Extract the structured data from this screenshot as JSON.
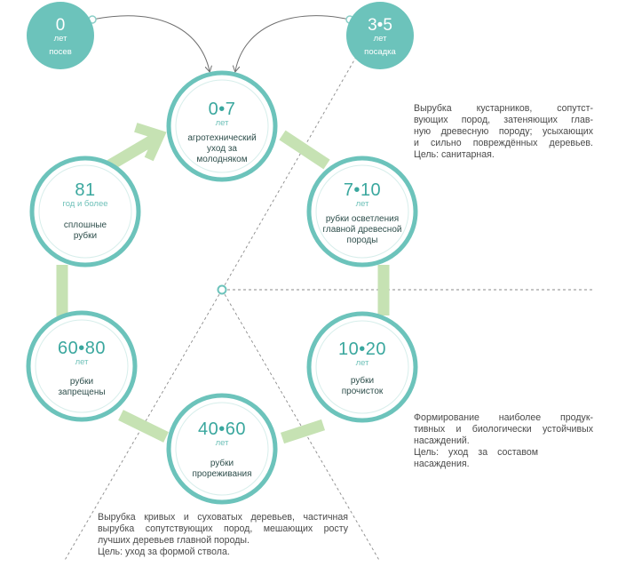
{
  "top_nodes": [
    {
      "number": "0",
      "unit": "лет",
      "label": "посев"
    },
    {
      "number": "3•5",
      "unit": "лет",
      "label": "посадка"
    }
  ],
  "stages": [
    {
      "number": "0•7",
      "unit": "лет",
      "lines": [
        "агротехнический",
        "уход за",
        "молодняком"
      ]
    },
    {
      "number": "7•10",
      "unit": "лет",
      "lines": [
        "рубки осветления",
        "главной древесной",
        "породы"
      ]
    },
    {
      "number": "10•20",
      "unit": "лет",
      "lines": [
        "рубки",
        "прочисток"
      ]
    },
    {
      "number": "40•60",
      "unit": "лет",
      "lines": [
        "рубки",
        "прореживания"
      ]
    },
    {
      "number": "60•80",
      "unit": "лет",
      "lines": [
        "рубки",
        "запрещены"
      ]
    },
    {
      "number": "81",
      "unit": "год и более",
      "lines": [
        "сплошные",
        "рубки"
      ]
    }
  ],
  "notes": {
    "clarification": [
      "Вырубка кустарников, сопутст-",
      "вующих пород, затеняющих глав-",
      "ную древесную породу; усыхающих",
      "и сильно повреждённых деревьев.",
      "Цель: санитарная."
    ],
    "thinning": [
      "Формирование наиболее продук-",
      "тивных и биологически устойчивых",
      "насаждений.",
      "Цель: уход за составом",
      "насаждения."
    ],
    "cleaning": [
      "Вырубка кривых и суховатых деревьев, частичная",
      "вырубка сопутствующих пород, мешающих росту",
      "лучших деревьев главной породы.",
      "Цель: уход за формой ствола."
    ]
  },
  "colors": {
    "teal": "#6cc3bb",
    "teal_dark": "#3aa79e",
    "ring_green": "#c6e2b3",
    "text": "#2f4f4c"
  }
}
